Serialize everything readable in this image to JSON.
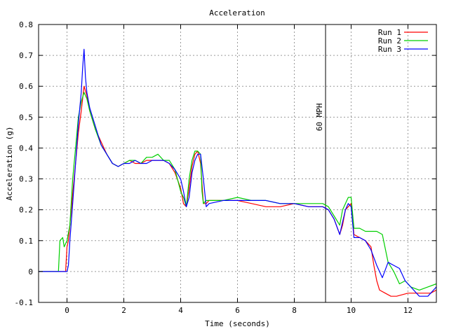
{
  "chart_data": {
    "type": "line",
    "title": "Acceleration",
    "xlabel": "Time (seconds)",
    "ylabel": "Acceleration (g)",
    "xlim": [
      -1,
      13
    ],
    "ylim": [
      -0.1,
      0.8
    ],
    "xticks": [
      0,
      2,
      4,
      6,
      8,
      10,
      12
    ],
    "yticks": [
      -0.1,
      0,
      0.1,
      0.2,
      0.3,
      0.4,
      0.5,
      0.6,
      0.7,
      0.8
    ],
    "grid": true,
    "legend_position": "top-right",
    "annotation": {
      "label": "60 MPH",
      "x": 9.1
    },
    "series": [
      {
        "name": "Run 1",
        "color": "#ff0000",
        "x": [
          -1,
          -0.1,
          -0.05,
          0,
          0.05,
          0.1,
          0.2,
          0.3,
          0.4,
          0.5,
          0.6,
          0.7,
          0.8,
          1.0,
          1.2,
          1.4,
          1.6,
          1.8,
          2.0,
          2.2,
          2.4,
          2.6,
          2.8,
          3.0,
          3.2,
          3.4,
          3.6,
          3.8,
          4.0,
          4.1,
          4.2,
          4.3,
          4.4,
          4.5,
          4.6,
          4.7,
          4.8,
          4.9,
          5.0,
          5.5,
          6.0,
          6.5,
          7.0,
          7.5,
          8.0,
          8.5,
          9.0,
          9.2,
          9.4,
          9.6,
          9.7,
          9.8,
          9.9,
          10.0,
          10.1,
          10.3,
          10.5,
          10.7,
          10.8,
          10.9,
          11.0,
          11.2,
          11.4,
          11.6,
          12.0,
          12.4,
          12.8,
          13.0
        ],
        "y": [
          0.0,
          0.0,
          0.0,
          0.08,
          0.1,
          0.15,
          0.25,
          0.35,
          0.45,
          0.52,
          0.6,
          0.57,
          0.52,
          0.46,
          0.42,
          0.38,
          0.35,
          0.34,
          0.35,
          0.36,
          0.35,
          0.35,
          0.36,
          0.36,
          0.36,
          0.36,
          0.35,
          0.32,
          0.27,
          0.22,
          0.21,
          0.27,
          0.34,
          0.38,
          0.39,
          0.35,
          0.22,
          0.22,
          0.23,
          0.23,
          0.23,
          0.22,
          0.21,
          0.21,
          0.22,
          0.21,
          0.21,
          0.2,
          0.17,
          0.12,
          0.15,
          0.2,
          0.21,
          0.22,
          0.12,
          0.11,
          0.1,
          0.08,
          0.02,
          -0.03,
          -0.06,
          -0.07,
          -0.08,
          -0.08,
          -0.07,
          -0.07,
          -0.07,
          -0.06
        ]
      },
      {
        "name": "Run 2",
        "color": "#00d000",
        "x": [
          -1,
          -0.3,
          -0.25,
          -0.15,
          -0.1,
          0,
          0.1,
          0.2,
          0.3,
          0.4,
          0.5,
          0.6,
          0.7,
          0.8,
          1.0,
          1.2,
          1.4,
          1.6,
          1.8,
          2.0,
          2.2,
          2.4,
          2.6,
          2.8,
          3.0,
          3.2,
          3.4,
          3.6,
          3.8,
          4.0,
          4.1,
          4.2,
          4.3,
          4.4,
          4.5,
          4.6,
          4.7,
          4.75,
          4.8,
          4.9,
          5.0,
          5.5,
          6.0,
          6.5,
          7.0,
          7.5,
          8.0,
          8.5,
          9.0,
          9.2,
          9.4,
          9.6,
          9.7,
          9.8,
          9.9,
          10.0,
          10.1,
          10.3,
          10.5,
          10.7,
          10.9,
          11.1,
          11.3,
          11.5,
          11.7,
          11.9,
          12.1,
          12.4,
          12.7,
          13.0
        ],
        "y": [
          0.0,
          0.0,
          0.1,
          0.11,
          0.08,
          0.1,
          0.15,
          0.3,
          0.4,
          0.5,
          0.55,
          0.58,
          0.56,
          0.52,
          0.46,
          0.41,
          0.38,
          0.35,
          0.34,
          0.35,
          0.36,
          0.36,
          0.35,
          0.37,
          0.37,
          0.38,
          0.36,
          0.36,
          0.33,
          0.26,
          0.24,
          0.21,
          0.3,
          0.36,
          0.39,
          0.39,
          0.38,
          0.26,
          0.22,
          0.23,
          0.23,
          0.23,
          0.24,
          0.23,
          0.23,
          0.22,
          0.22,
          0.22,
          0.22,
          0.21,
          0.18,
          0.15,
          0.2,
          0.22,
          0.24,
          0.24,
          0.14,
          0.14,
          0.13,
          0.13,
          0.13,
          0.12,
          0.03,
          0.0,
          -0.04,
          -0.03,
          -0.05,
          -0.06,
          -0.05,
          -0.04
        ]
      },
      {
        "name": "Run 3",
        "color": "#0000ff",
        "x": [
          -1,
          -0.5,
          0,
          0.05,
          0.1,
          0.2,
          0.3,
          0.4,
          0.5,
          0.55,
          0.6,
          0.65,
          0.7,
          0.8,
          1.0,
          1.2,
          1.4,
          1.6,
          1.8,
          2.0,
          2.2,
          2.4,
          2.6,
          2.8,
          3.0,
          3.2,
          3.4,
          3.6,
          3.8,
          4.0,
          4.1,
          4.2,
          4.3,
          4.4,
          4.5,
          4.6,
          4.7,
          4.8,
          4.9,
          5.0,
          5.5,
          6.0,
          6.5,
          7.0,
          7.5,
          8.0,
          8.5,
          9.0,
          9.2,
          9.4,
          9.6,
          9.7,
          9.8,
          9.9,
          10.0,
          10.1,
          10.3,
          10.5,
          10.7,
          10.9,
          11.1,
          11.3,
          11.5,
          11.7,
          11.9,
          12.1,
          12.4,
          12.7,
          13.0
        ],
        "y": [
          0.0,
          0.0,
          0.0,
          0.02,
          0.1,
          0.22,
          0.35,
          0.48,
          0.58,
          0.66,
          0.72,
          0.63,
          0.58,
          0.53,
          0.47,
          0.41,
          0.38,
          0.35,
          0.34,
          0.35,
          0.35,
          0.36,
          0.35,
          0.35,
          0.36,
          0.36,
          0.36,
          0.35,
          0.33,
          0.3,
          0.26,
          0.21,
          0.24,
          0.32,
          0.36,
          0.38,
          0.38,
          0.3,
          0.21,
          0.22,
          0.23,
          0.23,
          0.23,
          0.23,
          0.22,
          0.22,
          0.21,
          0.21,
          0.2,
          0.17,
          0.12,
          0.16,
          0.2,
          0.22,
          0.21,
          0.11,
          0.11,
          0.1,
          0.07,
          0.02,
          -0.02,
          0.03,
          0.02,
          0.01,
          -0.03,
          -0.05,
          -0.08,
          -0.08,
          -0.05
        ]
      }
    ]
  }
}
